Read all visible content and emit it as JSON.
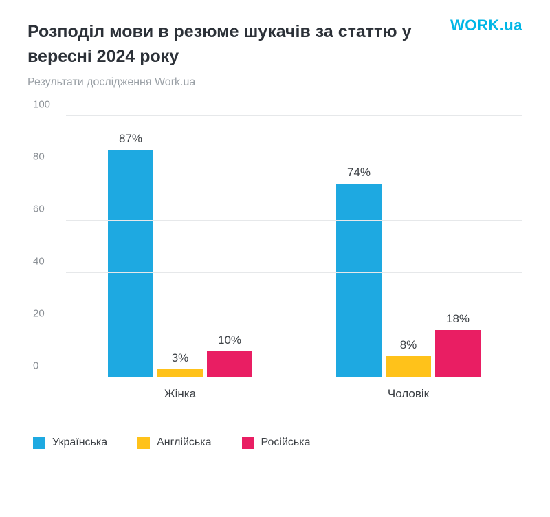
{
  "header": {
    "title": "Розподіл мови в резюме шукачів за статтю у вересні 2024 року",
    "subtitle": "Результати дослідження Work.ua",
    "logo": "WORK.ua"
  },
  "chart": {
    "type": "bar",
    "y": {
      "min": 0,
      "max": 100,
      "step": 20,
      "ticks": [
        "0",
        "20",
        "40",
        "60",
        "80",
        "100"
      ]
    },
    "grid_color": "#e6e8ea",
    "axis_text_color": "#8a8f95",
    "label_color": "#3c4045",
    "series": [
      {
        "key": "ukr",
        "label": "Українська",
        "color": "#1ea9e1"
      },
      {
        "key": "eng",
        "label": "Англійська",
        "color": "#ffc21a"
      },
      {
        "key": "rus",
        "label": "Російська",
        "color": "#e91e63"
      }
    ],
    "groups": [
      {
        "name": "Жінка",
        "values": {
          "ukr": 87,
          "eng": 3,
          "rus": 10
        }
      },
      {
        "name": "Чоловік",
        "values": {
          "ukr": 74,
          "eng": 8,
          "rus": 18
        }
      }
    ],
    "value_suffix": "%"
  }
}
